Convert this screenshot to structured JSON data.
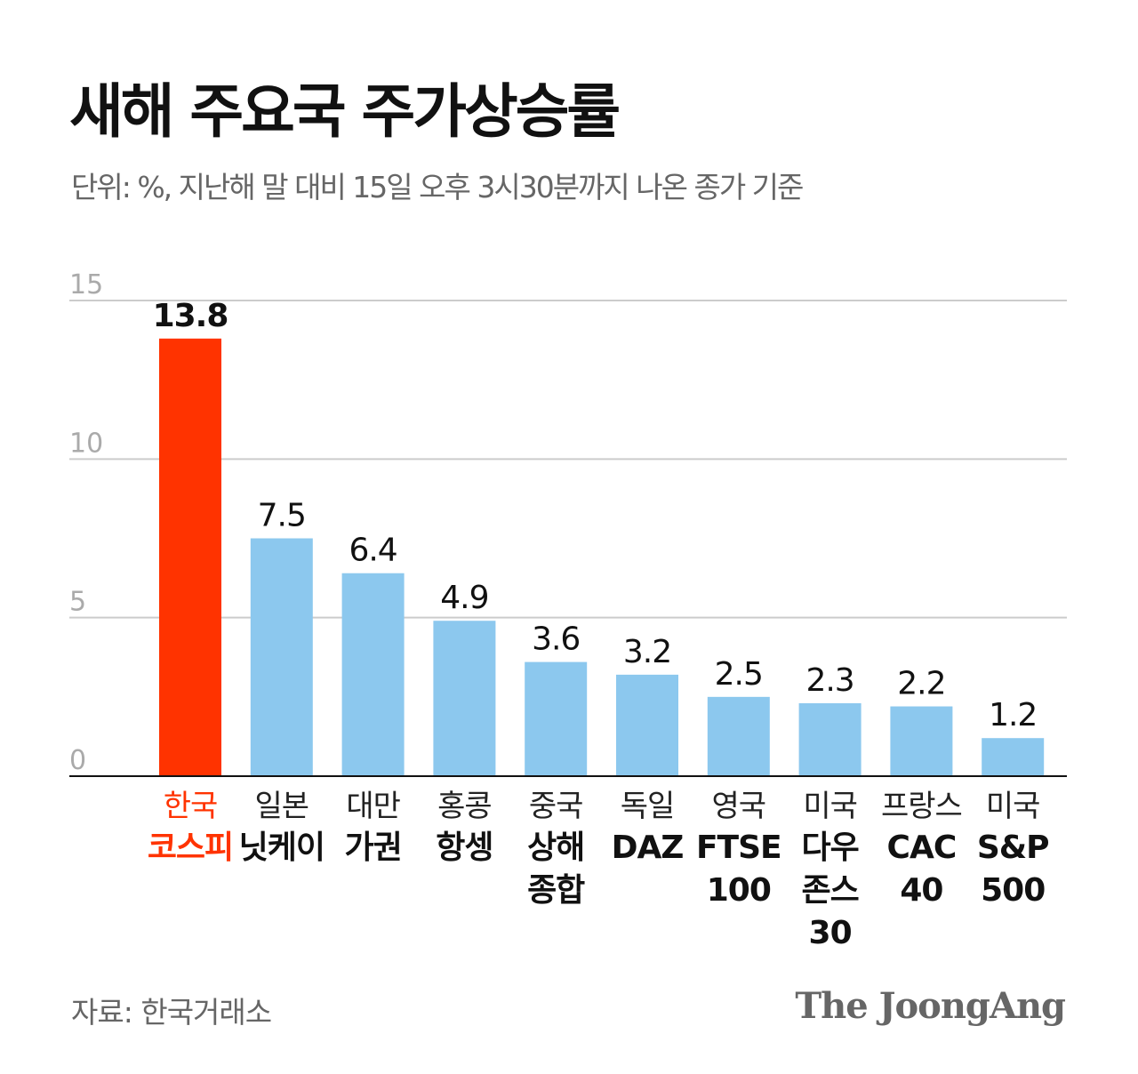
{
  "title": "새해 주요국 주가상승률",
  "subtitle": "단위: %, 지난해 말 대비 15일 오후 3시30분까지 나온 종가 기준",
  "source": "자료: 한국거래소",
  "logo": "The JoongAng",
  "colors": {
    "highlight": "#FF3300",
    "bar": "#8CC8EE",
    "grid": "#CCCCCC",
    "axis": "#111111"
  },
  "chart_data": {
    "type": "bar",
    "categories": [
      {
        "country": "한국",
        "index": "코스피"
      },
      {
        "country": "일본",
        "index": "닛케이"
      },
      {
        "country": "대만",
        "index": "가권"
      },
      {
        "country": "홍콩",
        "index": "항셍"
      },
      {
        "country": "중국",
        "index": "상해\n종합"
      },
      {
        "country": "독일",
        "index": "DAZ"
      },
      {
        "country": "영국",
        "index": "FTSE\n100"
      },
      {
        "country": "미국",
        "index": "다우\n존스\n30"
      },
      {
        "country": "프랑스",
        "index": "CAC\n40"
      },
      {
        "country": "미국",
        "index": "S&P\n500"
      }
    ],
    "values": [
      13.8,
      7.5,
      6.4,
      4.9,
      3.6,
      3.2,
      2.5,
      2.3,
      2.2,
      1.2
    ],
    "value_labels": [
      "13.8",
      "7.5",
      "6.4",
      "4.9",
      "3.6",
      "3.2",
      "2.5",
      "2.3",
      "2.2",
      "1.2"
    ],
    "highlight_index": 0,
    "ylim": [
      0,
      15
    ],
    "yticks": [
      "0",
      "5",
      "10",
      "15"
    ],
    "grid": true
  }
}
